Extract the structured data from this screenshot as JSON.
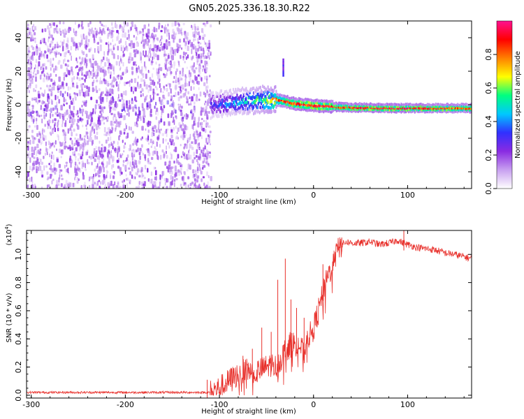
{
  "chart_data": [
    {
      "type": "heatmap",
      "title": "GN05.2025.336.18.30.R22",
      "xlabel": "Height of straight line (km)",
      "ylabel": "Frequency (Hz)",
      "xlim": [
        -305,
        168
      ],
      "ylim": [
        -50,
        50
      ],
      "x_ticks": [
        -300,
        -200,
        -100,
        0,
        100
      ],
      "y_ticks": [
        -40,
        -20,
        0,
        20,
        40
      ],
      "x_tick_labels": [
        "-300",
        "-200",
        "-100",
        "0",
        "100"
      ],
      "y_tick_labels": [
        "-40",
        "-20",
        "0",
        "20",
        "40"
      ],
      "colorbar": {
        "label": "Normalized spectral amplitude",
        "range": [
          0.0,
          1.0
        ],
        "ticks": [
          0.0,
          0.2,
          0.4,
          0.6,
          0.8
        ],
        "tick_labels": [
          "0.0",
          "0.2",
          "0.4",
          "0.6",
          "0.8"
        ],
        "colormap": [
          "#ffffff",
          "#c8a0f0",
          "#8a2be2",
          "#3030ff",
          "#00c8ff",
          "#00ff80",
          "#ffff00",
          "#ff8000",
          "#ff0000",
          "#ff1090"
        ]
      },
      "features": {
        "noise_region_x": [
          -305,
          -110
        ],
        "noise_level": 0.15,
        "signal_line": [
          {
            "x": -110,
            "freq": 0.0,
            "amp": 0.3
          },
          {
            "x": -80,
            "freq": 2.0,
            "amp": 0.45
          },
          {
            "x": -50,
            "freq": 3.5,
            "amp": 0.65
          },
          {
            "x": -35,
            "freq": 2.5,
            "amp": 0.85
          },
          {
            "x": -20,
            "freq": 0.5,
            "amp": 0.9
          },
          {
            "x": 0,
            "freq": -0.5,
            "amp": 0.95
          },
          {
            "x": 30,
            "freq": -1.5,
            "amp": 0.9
          },
          {
            "x": 80,
            "freq": -2.0,
            "amp": 0.95
          },
          {
            "x": 168,
            "freq": -2.0,
            "amp": 0.85
          }
        ],
        "spur": {
          "x": -33,
          "freq_range": [
            18,
            28
          ]
        }
      }
    },
    {
      "type": "line",
      "xlabel": "Height of straight line (km)",
      "ylabel": "SNR (10 * v/v)",
      "y_scale_label": "(x10",
      "y_scale_exponent": "4",
      "y_scale_suffix": ")",
      "xlim": [
        -305,
        168
      ],
      "ylim": [
        -0.02,
        1.17
      ],
      "x_ticks": [
        -300,
        -200,
        -100,
        0,
        100
      ],
      "y_ticks": [
        0.0,
        0.2,
        0.4,
        0.6,
        0.8,
        1.0
      ],
      "x_tick_labels": [
        "-300",
        "-200",
        "-100",
        "0",
        "100"
      ],
      "y_tick_labels": [
        "0.0",
        "0.2",
        "0.4",
        "0.6",
        "0.8",
        "1.0"
      ],
      "color": "#e8302b",
      "series": [
        {
          "name": "SNR",
          "x": [
            -305,
            -250,
            -200,
            -150,
            -110,
            -100,
            -90,
            -80,
            -70,
            -60,
            -50,
            -45,
            -40,
            -35,
            -30,
            -25,
            -20,
            -15,
            -10,
            -5,
            0,
            5,
            10,
            15,
            20,
            25,
            30,
            35,
            40,
            50,
            60,
            70,
            80,
            90,
            95,
            100,
            110,
            120,
            130,
            140,
            150,
            168
          ],
          "values": [
            0.02,
            0.02,
            0.02,
            0.02,
            0.02,
            0.05,
            0.1,
            0.15,
            0.18,
            0.17,
            0.2,
            0.22,
            0.2,
            0.25,
            0.32,
            0.36,
            0.37,
            0.35,
            0.3,
            0.42,
            0.47,
            0.6,
            0.72,
            0.84,
            0.92,
            1.02,
            1.07,
            1.09,
            1.08,
            1.08,
            1.09,
            1.07,
            1.08,
            1.1,
            1.08,
            1.07,
            1.05,
            1.04,
            1.03,
            1.01,
            1.0,
            0.97
          ]
        }
      ],
      "spikes": [
        {
          "x": -113,
          "value": 0.11
        },
        {
          "x": -88,
          "value": 0.19
        },
        {
          "x": -75,
          "value": 0.28
        },
        {
          "x": -65,
          "value": 0.33
        },
        {
          "x": -55,
          "value": 0.48
        },
        {
          "x": -45,
          "value": 0.45
        },
        {
          "x": -38,
          "value": 0.82
        },
        {
          "x": -30,
          "value": 0.97
        },
        {
          "x": -24,
          "value": 0.68
        },
        {
          "x": -18,
          "value": 0.62
        },
        {
          "x": -10,
          "value": 0.55
        },
        {
          "x": 10,
          "value": 0.93
        },
        {
          "x": 30,
          "value": 1.12
        },
        {
          "x": 96,
          "value": 1.17
        }
      ]
    }
  ]
}
